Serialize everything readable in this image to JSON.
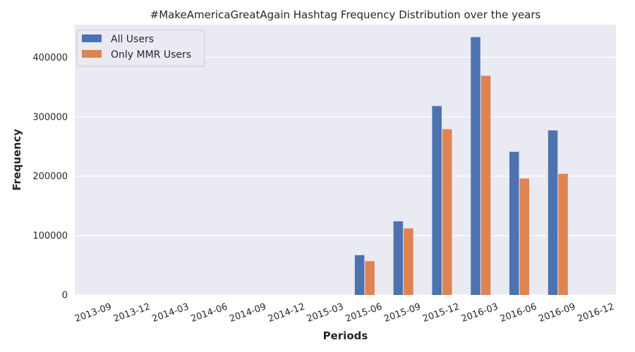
{
  "chart_data": {
    "type": "bar",
    "title": "#MakeAmericaGreatAgain Hashtag Frequency Distribution over the years",
    "xlabel": "Periods",
    "ylabel": "Frequency",
    "categories": [
      "2013-09",
      "2013-12",
      "2014-03",
      "2014-06",
      "2014-09",
      "2014-12",
      "2015-03",
      "2015-06",
      "2015-09",
      "2015-12",
      "2016-03",
      "2016-06",
      "2016-09",
      "2016-12"
    ],
    "series": [
      {
        "name": "All Users",
        "color": "#4C72B0",
        "values": [
          0,
          0,
          0,
          0,
          0,
          0,
          0,
          67000,
          124000,
          318000,
          434000,
          241000,
          277000,
          0
        ]
      },
      {
        "name": "Only MMR Users",
        "color": "#DD8452",
        "values": [
          0,
          0,
          0,
          0,
          0,
          0,
          0,
          57000,
          112000,
          279000,
          369000,
          196000,
          204000,
          0
        ]
      }
    ],
    "ylim": [
      0,
      455000
    ],
    "yticks": [
      0,
      100000,
      200000,
      300000,
      400000
    ],
    "yticklabels": [
      "0",
      "100000",
      "200000",
      "300000",
      "400000"
    ],
    "grid": true,
    "legend": "top-left",
    "background": "#EAEAF2"
  }
}
